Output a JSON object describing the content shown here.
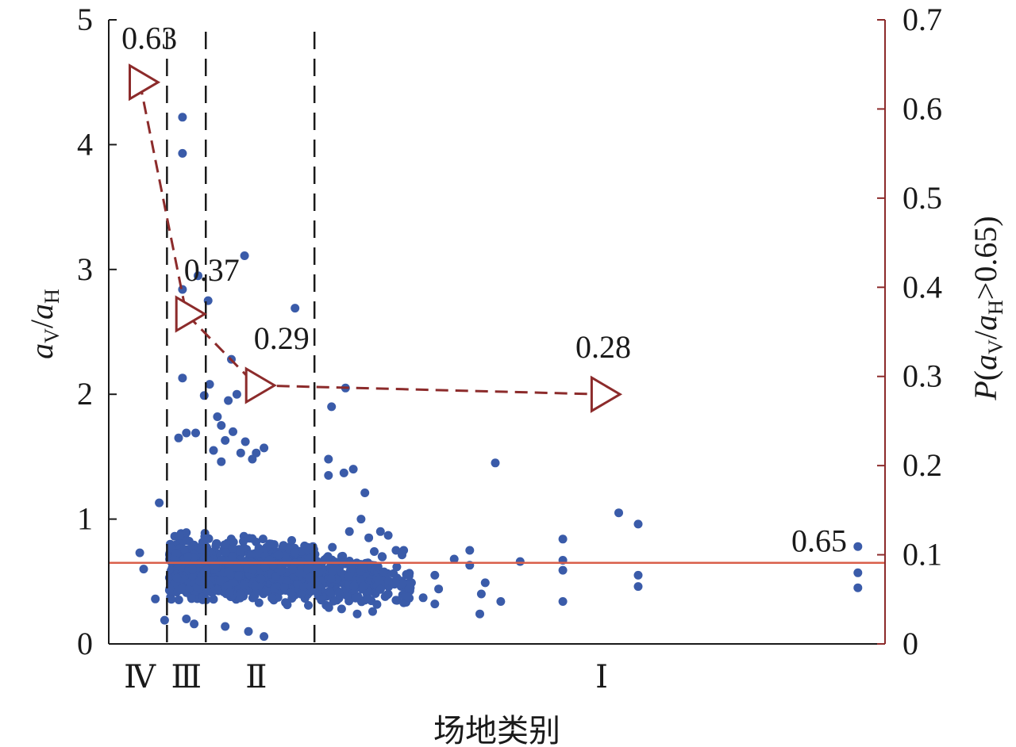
{
  "chart_data": {
    "type": "scatter",
    "xlabel": "场地类别",
    "ylabel_left": {
      "italic_base": "a",
      "sub1": "V",
      "sep": "/",
      "italic_base2": "a",
      "sub2": "H"
    },
    "ylabel_right": {
      "prefix": "P",
      "open": "(",
      "italic_base": "a",
      "sub1": "V",
      "sep": "/",
      "italic_base2": "a",
      "sub2": "H",
      "rest": ">0.65)"
    },
    "y_left": {
      "min": 0,
      "max": 5,
      "ticks": [
        "0",
        "1",
        "2",
        "3",
        "4",
        "5"
      ]
    },
    "y_right": {
      "min": 0,
      "max": 0.7,
      "ticks": [
        "0",
        "0.1",
        "0.2",
        "0.3",
        "0.4",
        "0.5",
        "0.6",
        "0.7"
      ]
    },
    "x": {
      "min": 0,
      "max": 1.0
    },
    "site_classes": [
      {
        "label": "Ⅳ",
        "x": 0.04
      },
      {
        "label": "Ⅲ",
        "x": 0.1
      },
      {
        "label": "Ⅱ",
        "x": 0.19
      },
      {
        "label": "Ⅰ",
        "x": 0.635
      }
    ],
    "boundaries": [
      0.075,
      0.125,
      0.265
    ],
    "threshold": {
      "value": 0.65,
      "label": "0.65",
      "color": "#d95f4a"
    },
    "probability_series": {
      "color": "#8c2b2b",
      "points": [
        {
          "x": 0.04,
          "p": 0.63,
          "label": "0.63"
        },
        {
          "x": 0.1,
          "p": 0.37,
          "label": "0.37"
        },
        {
          "x": 0.19,
          "p": 0.29,
          "label": "0.29"
        },
        {
          "x": 0.635,
          "p": 0.28,
          "label": "0.28"
        }
      ]
    },
    "scatter_color": "#3a5ba9",
    "scatter_points": [
      [
        0.095,
        4.22
      ],
      [
        0.095,
        3.93
      ],
      [
        0.175,
        3.11
      ],
      [
        0.24,
        2.69
      ],
      [
        0.095,
        2.84
      ],
      [
        0.115,
        2.95
      ],
      [
        0.128,
        2.75
      ],
      [
        0.158,
        2.28
      ],
      [
        0.095,
        2.13
      ],
      [
        0.13,
        2.08
      ],
      [
        0.165,
        2.0
      ],
      [
        0.154,
        1.95
      ],
      [
        0.123,
        1.99
      ],
      [
        0.305,
        2.05
      ],
      [
        0.287,
        1.9
      ],
      [
        0.498,
        1.45
      ],
      [
        0.657,
        1.05
      ],
      [
        0.682,
        0.96
      ],
      [
        0.585,
        0.84
      ],
      [
        0.585,
        0.67
      ],
      [
        0.585,
        0.59
      ],
      [
        0.585,
        0.34
      ],
      [
        0.682,
        0.55
      ],
      [
        0.682,
        0.46
      ],
      [
        0.965,
        0.78
      ],
      [
        0.965,
        0.57
      ],
      [
        0.965,
        0.45
      ],
      [
        0.53,
        0.66
      ],
      [
        0.465,
        0.75
      ],
      [
        0.465,
        0.63
      ],
      [
        0.445,
        0.68
      ],
      [
        0.42,
        0.55
      ],
      [
        0.425,
        0.44
      ],
      [
        0.42,
        0.32
      ],
      [
        0.48,
        0.4
      ],
      [
        0.485,
        0.49
      ],
      [
        0.478,
        0.24
      ],
      [
        0.505,
        0.34
      ],
      [
        0.405,
        0.37
      ],
      [
        0.39,
        0.49
      ],
      [
        0.04,
        0.73
      ],
      [
        0.065,
        1.13
      ],
      [
        0.045,
        0.6
      ],
      [
        0.06,
        0.36
      ],
      [
        0.072,
        0.19
      ],
      [
        0.09,
        1.65
      ],
      [
        0.1,
        1.69
      ],
      [
        0.112,
        1.69
      ],
      [
        0.14,
        1.82
      ],
      [
        0.145,
        1.75
      ],
      [
        0.15,
        1.63
      ],
      [
        0.16,
        1.7
      ],
      [
        0.17,
        1.53
      ],
      [
        0.176,
        1.62
      ],
      [
        0.19,
        1.53
      ],
      [
        0.2,
        1.57
      ],
      [
        0.145,
        1.46
      ],
      [
        0.185,
        1.48
      ],
      [
        0.135,
        1.55
      ],
      [
        0.283,
        1.48
      ],
      [
        0.283,
        1.35
      ],
      [
        0.303,
        1.37
      ],
      [
        0.315,
        1.4
      ],
      [
        0.33,
        1.21
      ],
      [
        0.325,
        1.0
      ],
      [
        0.335,
        0.85
      ],
      [
        0.35,
        0.9
      ],
      [
        0.36,
        0.87
      ],
      [
        0.37,
        0.75
      ],
      [
        0.38,
        0.75
      ],
      [
        0.342,
        0.74
      ],
      [
        0.352,
        0.7
      ],
      [
        0.31,
        0.9
      ],
      [
        0.3,
        0.7
      ],
      [
        0.29,
        0.6
      ],
      [
        0.31,
        0.4
      ],
      [
        0.33,
        0.35
      ],
      [
        0.35,
        0.45
      ],
      [
        0.36,
        0.4
      ],
      [
        0.37,
        0.35
      ],
      [
        0.38,
        0.33
      ],
      [
        0.34,
        0.26
      ],
      [
        0.32,
        0.24
      ],
      [
        0.3,
        0.28
      ],
      [
        0.28,
        0.31
      ],
      [
        0.2,
        0.06
      ],
      [
        0.18,
        0.1
      ],
      [
        0.15,
        0.14
      ],
      [
        0.11,
        0.16
      ],
      [
        0.1,
        0.2
      ]
    ]
  }
}
